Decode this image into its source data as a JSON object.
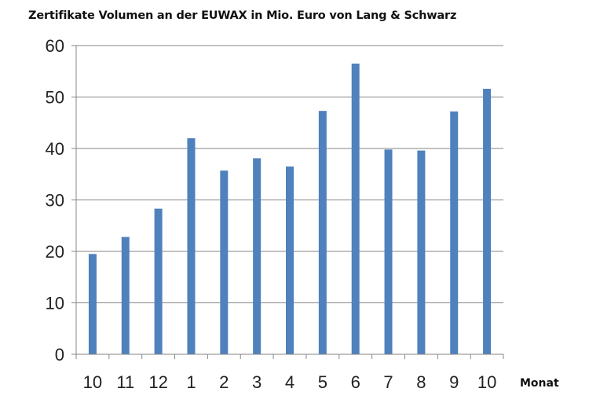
{
  "chart_data": {
    "type": "bar",
    "title": "Zertifikate Volumen an der EUWAX in Mio. Euro  von Lang & Schwarz",
    "xlabel": "Monat",
    "ylabel": "",
    "categories": [
      "10",
      "11",
      "12",
      "1",
      "2",
      "3",
      "4",
      "5",
      "6",
      "7",
      "8",
      "9",
      "10"
    ],
    "values": [
      19.5,
      22.8,
      28.3,
      42.0,
      35.7,
      38.1,
      36.5,
      47.3,
      56.5,
      39.8,
      39.6,
      47.2,
      51.6
    ],
    "ylim": [
      0,
      60
    ],
    "yticks": [
      0,
      10,
      20,
      30,
      40,
      50,
      60
    ],
    "grid": true,
    "legend": "none",
    "bar_color": "#4f81bd",
    "grid_color": "#868686"
  }
}
